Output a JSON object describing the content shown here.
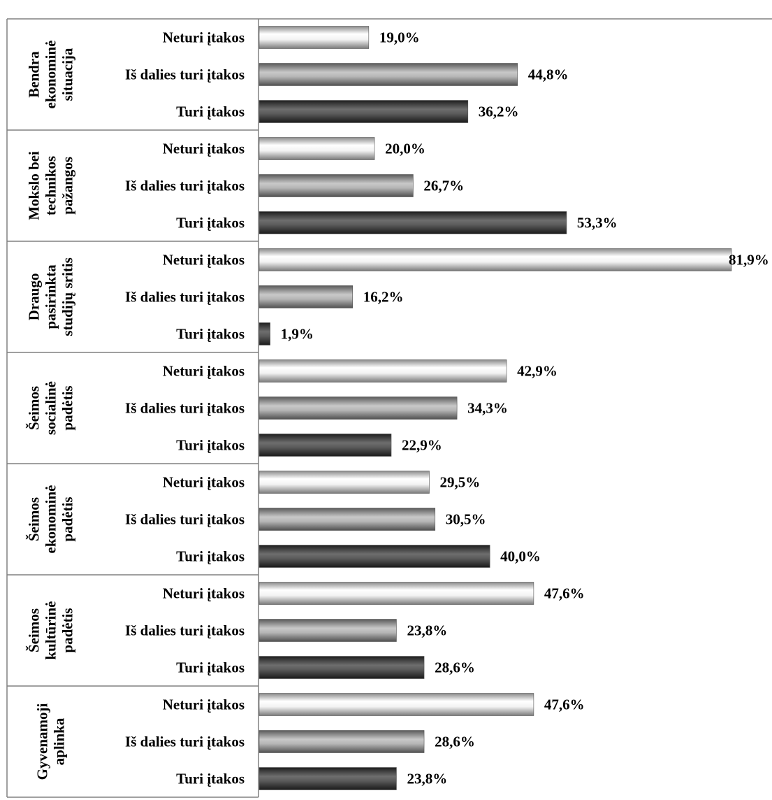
{
  "chart_data": {
    "type": "bar",
    "orientation": "horizontal",
    "grouped_categories": true,
    "category_labels": [
      "Neturi įtakos",
      "Iš dalies turi įtakos",
      "Turi įtakos"
    ],
    "groups": [
      {
        "label_lines": [
          "Bendra",
          "ekonominė",
          "situacija"
        ],
        "values": [
          19.0,
          44.8,
          36.2
        ],
        "value_labels": [
          "19,0%",
          "44,8%",
          "36,2%"
        ]
      },
      {
        "label_lines": [
          "Mokslo bei",
          "technikos",
          "pažangos"
        ],
        "values": [
          20.0,
          26.7,
          53.3
        ],
        "value_labels": [
          "20,0%",
          "26,7%",
          "53,3%"
        ]
      },
      {
        "label_lines": [
          "Draugo",
          "pasirinkta",
          "studijų sritis"
        ],
        "values": [
          81.9,
          16.2,
          1.9
        ],
        "value_labels": [
          "81,9%",
          "16,2%",
          "1,9%"
        ]
      },
      {
        "label_lines": [
          "Šeimos",
          "socialinė",
          "padėtis"
        ],
        "values": [
          42.9,
          34.3,
          22.9
        ],
        "value_labels": [
          "42,9%",
          "34,3%",
          "22,9%"
        ]
      },
      {
        "label_lines": [
          "Šeimos",
          "ekonominė",
          "padėtis"
        ],
        "values": [
          29.5,
          30.5,
          40.0
        ],
        "value_labels": [
          "29,5%",
          "30,5%",
          "40,0%"
        ]
      },
      {
        "label_lines": [
          "Šeimos",
          "kultūrinė",
          "padėtis"
        ],
        "values": [
          47.6,
          23.8,
          28.6
        ],
        "value_labels": [
          "47,6%",
          "23,8%",
          "28,6%"
        ]
      },
      {
        "label_lines": [
          "Gyvenamoji",
          "aplinka"
        ],
        "values": [
          47.6,
          28.6,
          23.8
        ],
        "value_labels": [
          "47,6%",
          "28,6%",
          "23,8%"
        ]
      }
    ],
    "xlim": [
      0,
      100
    ],
    "grid": false,
    "legend": "none",
    "colors": {
      "Neturi įtakos": "#bfbfbf",
      "Iš dalies turi įtakos": "#8c8c8c",
      "Turi įtakos": "#404040"
    }
  }
}
